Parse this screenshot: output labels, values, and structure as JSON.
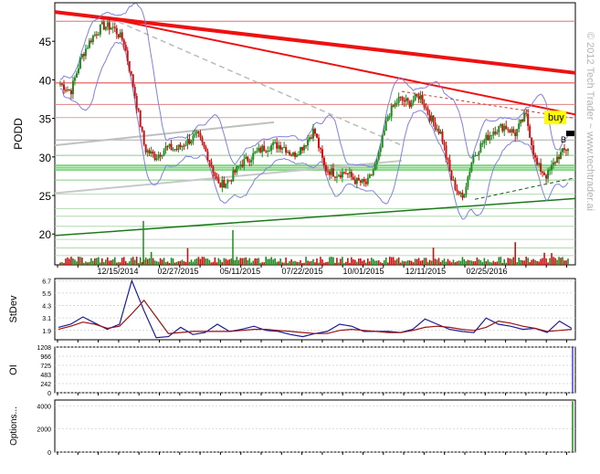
{
  "watermark": "© 2012 Tech Trader ~ www.techtrader.ai",
  "colors": {
    "up": "#1f8a1f",
    "down": "#cc1111",
    "bollinger": "#8080e0",
    "trend_red": "#ee1111",
    "trend_green": "#1a7a1a",
    "support_band": "#66cc66",
    "stdev_fast": "#1a1a99",
    "stdev_slow": "#991111",
    "oi": "#4444cc",
    "options": "#1a8a1a",
    "buy_label_bg": "#ffff00"
  },
  "chart_data": [
    {
      "type": "line",
      "title": "",
      "ylabel": "PODD",
      "ylim": [
        16,
        50
      ],
      "yticks": [
        20,
        25,
        30,
        35,
        40,
        45
      ],
      "x_tick_labels": [
        "12/15/2014",
        "02/27/2015",
        "05/11/2015",
        "07/22/2015",
        "10/01/2015",
        "12/11/2015",
        "02/25/2016"
      ],
      "annotations": [
        "buy",
        "B"
      ],
      "series": [
        {
          "values": [
            39.5,
            38.5,
            43,
            45.5,
            47,
            46.8,
            45,
            38.5,
            31,
            30,
            31.2,
            31,
            32,
            32.8,
            30,
            26.2,
            27,
            29,
            30,
            31,
            31.5,
            31.5,
            30.2,
            31.5,
            33.5,
            28.5,
            27.8,
            28,
            26.8,
            26.5,
            29.5,
            35.5,
            37.5,
            37,
            38,
            35,
            33,
            27,
            24.5,
            30,
            32,
            33.5,
            34,
            33,
            35.5,
            29,
            27.5,
            30,
            31.2
          ]
        }
      ]
    },
    {
      "type": "line",
      "ylabel": "StDev",
      "ylim": [
        1,
        6.9
      ],
      "yticks": [
        1.9,
        3.1,
        4.3,
        5.5,
        6.7
      ],
      "series": [
        {
          "values": [
            2.2,
            2.5,
            3.2,
            2.6,
            2.0,
            2.5,
            6.7,
            3.8,
            1.2,
            1.3,
            2.2,
            1.5,
            1.7,
            2.5,
            1.8,
            2.0,
            2.3,
            1.9,
            1.8,
            1.5,
            1.3,
            1.6,
            1.8,
            2.5,
            2.3,
            1.8,
            1.8,
            1.8,
            1.7,
            2.0,
            3.0,
            2.5,
            2.0,
            1.8,
            1.7,
            3.1,
            2.5,
            2.3,
            2.0,
            2.1,
            1.7,
            2.8,
            2.1
          ]
        },
        {
          "values": [
            2.0,
            2.3,
            2.7,
            2.5,
            2.1,
            2.3,
            3.5,
            4.8,
            3.2,
            1.6,
            1.7,
            1.8,
            1.8,
            1.8,
            1.8,
            1.9,
            2.0,
            2.0,
            1.9,
            1.8,
            1.7,
            1.6,
            1.6,
            1.9,
            2.0,
            1.9,
            1.8,
            1.7,
            1.7,
            1.9,
            2.2,
            2.3,
            2.2,
            2.0,
            1.9,
            2.2,
            2.8,
            2.6,
            2.3,
            2.1,
            1.8,
            1.9,
            2.0
          ]
        }
      ]
    },
    {
      "type": "bar",
      "ylabel": "OI",
      "ylim": [
        0,
        1208
      ],
      "yticks": [
        0,
        242,
        483,
        725,
        966,
        1208
      ],
      "last_value": 1208
    },
    {
      "type": "bar",
      "ylabel": "Options...",
      "ylim": [
        0,
        4500
      ],
      "yticks": [
        0,
        2000,
        4000
      ],
      "last_value": 4400
    }
  ]
}
